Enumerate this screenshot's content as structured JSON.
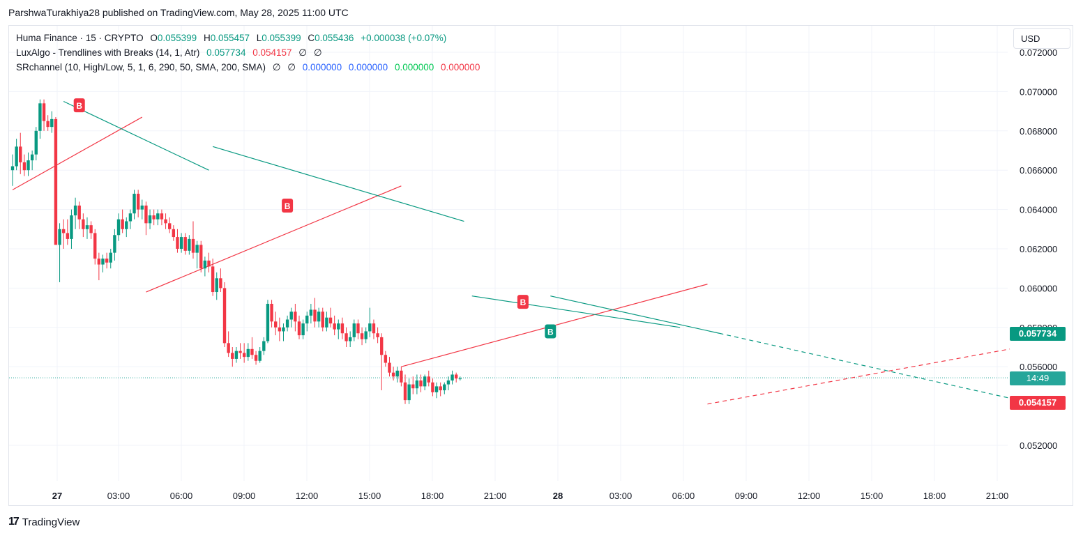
{
  "header": {
    "credit": "ParshwaTurakhiya28 published on TradingView.com, May 28, 2025 11:00 UTC"
  },
  "legend": {
    "symbol": "Huma Finance · 15 · CRYPTO",
    "o_label": "O",
    "o_value": "0.055399",
    "h_label": "H",
    "h_value": "0.055457",
    "l_label": "L",
    "l_value": "0.055399",
    "c_label": "C",
    "c_value": "0.055436",
    "change": "+0.000038 (+0.07%)",
    "ind1_name": "LuxAlgo - Trendlines with Breaks (14, 1, Atr)",
    "ind1_v1": "0.057734",
    "ind1_v2": "0.054157",
    "ind1_v3": "∅",
    "ind1_v4": "∅",
    "ind2_name": "SRchannel (10, High/Low, 5, 1, 6, 290, 50, SMA, 200, SMA)",
    "ind2_v1": "∅",
    "ind2_v2": "∅",
    "ind2_v3": "0.000000",
    "ind2_v4": "0.000000",
    "ind2_v5": "0.000000",
    "ind2_v6": "0.000000"
  },
  "currency_button": "USD",
  "price_tags": {
    "upper": "0.057734",
    "countdown": "14:49",
    "lower": "0.054157"
  },
  "footer": {
    "brand": "TradingView"
  },
  "colors": {
    "up": "#089981",
    "down": "#f23645",
    "grid": "#f0f3fa"
  },
  "chart_data": {
    "type": "candlestick",
    "title": "Huma Finance · 15 · CRYPTO",
    "y_ticks": [
      "0.072000",
      "0.070000",
      "0.068000",
      "0.066000",
      "0.064000",
      "0.062000",
      "0.060000",
      "0.058000",
      "0.056000",
      "0.052000"
    ],
    "ylim": [
      0.0502,
      0.0725
    ],
    "x_ticks": [
      "27",
      "03:00",
      "06:00",
      "09:00",
      "12:00",
      "15:00",
      "18:00",
      "21:00",
      "28",
      "03:00",
      "06:00",
      "09:00",
      "12:00",
      "15:00",
      "18:00",
      "21:00"
    ],
    "current_price": 0.055436,
    "series": [
      {
        "name": "ohlc",
        "points": [
          [
            0.066,
            0.0668,
            0.0652,
            0.0662
          ],
          [
            0.0662,
            0.0676,
            0.066,
            0.0672
          ],
          [
            0.0672,
            0.0679,
            0.0658,
            0.0664
          ],
          [
            0.0664,
            0.0668,
            0.0657,
            0.066
          ],
          [
            0.066,
            0.0669,
            0.0657,
            0.0665
          ],
          [
            0.0665,
            0.067,
            0.066,
            0.0668
          ],
          [
            0.0668,
            0.0682,
            0.0665,
            0.068
          ],
          [
            0.068,
            0.0696,
            0.0676,
            0.0694
          ],
          [
            0.0694,
            0.0696,
            0.068,
            0.0685
          ],
          [
            0.0685,
            0.0688,
            0.068,
            0.0682
          ],
          [
            0.0682,
            0.069,
            0.0679,
            0.0686
          ],
          [
            0.0686,
            0.0687,
            0.0628,
            0.0622
          ],
          [
            0.0622,
            0.0633,
            0.0603,
            0.063
          ],
          [
            0.063,
            0.0635,
            0.062,
            0.0628
          ],
          [
            0.0628,
            0.0635,
            0.0622,
            0.0625
          ],
          [
            0.0625,
            0.064,
            0.062,
            0.0637
          ],
          [
            0.0637,
            0.0646,
            0.063,
            0.0642
          ],
          [
            0.0642,
            0.0644,
            0.063,
            0.0635
          ],
          [
            0.0635,
            0.0638,
            0.0626,
            0.063
          ],
          [
            0.063,
            0.0636,
            0.0625,
            0.0632
          ],
          [
            0.0632,
            0.0634,
            0.0625,
            0.0628
          ],
          [
            0.0628,
            0.063,
            0.0612,
            0.0615
          ],
          [
            0.0615,
            0.0618,
            0.0604,
            0.0612
          ],
          [
            0.0612,
            0.0617,
            0.0608,
            0.0615
          ],
          [
            0.0615,
            0.0618,
            0.061,
            0.0613
          ],
          [
            0.0613,
            0.062,
            0.061,
            0.0618
          ],
          [
            0.0618,
            0.063,
            0.0614,
            0.0627
          ],
          [
            0.0627,
            0.0638,
            0.0624,
            0.0635
          ],
          [
            0.0635,
            0.064,
            0.0628,
            0.063
          ],
          [
            0.063,
            0.0636,
            0.0626,
            0.0634
          ],
          [
            0.0634,
            0.064,
            0.063,
            0.0638
          ],
          [
            0.0638,
            0.065,
            0.0635,
            0.0648
          ],
          [
            0.0648,
            0.065,
            0.0636,
            0.064
          ],
          [
            0.064,
            0.0645,
            0.0635,
            0.0642
          ],
          [
            0.0642,
            0.0644,
            0.0627,
            0.0633
          ],
          [
            0.0633,
            0.064,
            0.063,
            0.0637
          ],
          [
            0.0637,
            0.064,
            0.0632,
            0.0635
          ],
          [
            0.0635,
            0.064,
            0.0632,
            0.0638
          ],
          [
            0.0638,
            0.064,
            0.0632,
            0.0635
          ],
          [
            0.0635,
            0.0638,
            0.063,
            0.0633
          ],
          [
            0.0633,
            0.0636,
            0.0628,
            0.063
          ],
          [
            0.063,
            0.0632,
            0.0624,
            0.0626
          ],
          [
            0.0626,
            0.063,
            0.0618,
            0.062
          ],
          [
            0.062,
            0.0628,
            0.0618,
            0.0626
          ],
          [
            0.0626,
            0.0628,
            0.0617,
            0.0619
          ],
          [
            0.0619,
            0.0627,
            0.0617,
            0.0625
          ],
          [
            0.0625,
            0.0634,
            0.0615,
            0.0618
          ],
          [
            0.0618,
            0.0624,
            0.061,
            0.0622
          ],
          [
            0.0622,
            0.0624,
            0.0608,
            0.061
          ],
          [
            0.061,
            0.0616,
            0.0606,
            0.0614
          ],
          [
            0.0614,
            0.0618,
            0.0608,
            0.0611
          ],
          [
            0.0611,
            0.0615,
            0.0596,
            0.0598
          ],
          [
            0.0598,
            0.0608,
            0.0594,
            0.0605
          ],
          [
            0.0605,
            0.061,
            0.0598,
            0.06
          ],
          [
            0.06,
            0.0603,
            0.057,
            0.0572
          ],
          [
            0.0572,
            0.0578,
            0.0565,
            0.0567
          ],
          [
            0.0567,
            0.057,
            0.056,
            0.0564
          ],
          [
            0.0564,
            0.057,
            0.0562,
            0.0568
          ],
          [
            0.0568,
            0.0572,
            0.0564,
            0.0567
          ],
          [
            0.0567,
            0.0572,
            0.0562,
            0.0565
          ],
          [
            0.0565,
            0.0572,
            0.0563,
            0.0569
          ],
          [
            0.0569,
            0.0575,
            0.0564,
            0.0566
          ],
          [
            0.0566,
            0.0568,
            0.0561,
            0.0563
          ],
          [
            0.0563,
            0.057,
            0.0562,
            0.0568
          ],
          [
            0.0568,
            0.0575,
            0.0566,
            0.0573
          ],
          [
            0.0573,
            0.0594,
            0.0572,
            0.0592
          ],
          [
            0.0592,
            0.0594,
            0.058,
            0.0583
          ],
          [
            0.0583,
            0.0588,
            0.0576,
            0.058
          ],
          [
            0.058,
            0.0585,
            0.0573,
            0.0578
          ],
          [
            0.0578,
            0.0582,
            0.0573,
            0.058
          ],
          [
            0.058,
            0.0586,
            0.0578,
            0.0584
          ],
          [
            0.0584,
            0.059,
            0.058,
            0.0588
          ],
          [
            0.0588,
            0.0592,
            0.0578,
            0.0583
          ],
          [
            0.0583,
            0.0586,
            0.0574,
            0.0576
          ],
          [
            0.0576,
            0.0584,
            0.0574,
            0.0582
          ],
          [
            0.0582,
            0.0588,
            0.0578,
            0.0586
          ],
          [
            0.0586,
            0.0592,
            0.0582,
            0.0589
          ],
          [
            0.0589,
            0.0595,
            0.058,
            0.0583
          ],
          [
            0.0583,
            0.059,
            0.058,
            0.0588
          ],
          [
            0.0588,
            0.059,
            0.0578,
            0.058
          ],
          [
            0.058,
            0.0588,
            0.0578,
            0.0585
          ],
          [
            0.0585,
            0.059,
            0.058,
            0.0582
          ],
          [
            0.0582,
            0.0586,
            0.0576,
            0.0579
          ],
          [
            0.0579,
            0.0584,
            0.0574,
            0.0582
          ],
          [
            0.0582,
            0.0585,
            0.0574,
            0.0577
          ],
          [
            0.0577,
            0.058,
            0.057,
            0.0573
          ],
          [
            0.0573,
            0.0578,
            0.057,
            0.0575
          ],
          [
            0.0575,
            0.0584,
            0.0573,
            0.0582
          ],
          [
            0.0582,
            0.0584,
            0.0574,
            0.0577
          ],
          [
            0.0577,
            0.058,
            0.0571,
            0.0574
          ],
          [
            0.0574,
            0.058,
            0.0572,
            0.0578
          ],
          [
            0.0578,
            0.059,
            0.0575,
            0.0582
          ],
          [
            0.0582,
            0.0584,
            0.0574,
            0.0577
          ],
          [
            0.0577,
            0.058,
            0.0572,
            0.0575
          ],
          [
            0.0575,
            0.0577,
            0.0548,
            0.0566
          ],
          [
            0.0566,
            0.0568,
            0.056,
            0.0562
          ],
          [
            0.0562,
            0.0565,
            0.0555,
            0.0557
          ],
          [
            0.0557,
            0.056,
            0.0553,
            0.0555
          ],
          [
            0.0555,
            0.056,
            0.0552,
            0.0558
          ],
          [
            0.0558,
            0.056,
            0.055,
            0.0552
          ],
          [
            0.0552,
            0.0556,
            0.0541,
            0.0543
          ],
          [
            0.0543,
            0.0554,
            0.0541,
            0.0551
          ],
          [
            0.0551,
            0.0555,
            0.0546,
            0.0549
          ],
          [
            0.0549,
            0.0556,
            0.0546,
            0.0553
          ],
          [
            0.0553,
            0.0556,
            0.0547,
            0.055
          ],
          [
            0.055,
            0.0556,
            0.0548,
            0.0555
          ],
          [
            0.0555,
            0.0558,
            0.055,
            0.0552
          ],
          [
            0.0552,
            0.0554,
            0.0545,
            0.0547
          ],
          [
            0.0547,
            0.0552,
            0.0544,
            0.055
          ],
          [
            0.055,
            0.0552,
            0.0545,
            0.0548
          ],
          [
            0.0548,
            0.0552,
            0.0546,
            0.0551
          ],
          [
            0.0551,
            0.0555,
            0.0548,
            0.0553
          ],
          [
            0.0553,
            0.0558,
            0.0551,
            0.0556
          ],
          [
            0.0556,
            0.0557,
            0.0552,
            0.0554
          ],
          [
            0.0554,
            0.0555,
            0.0553,
            0.0554
          ]
        ]
      }
    ]
  }
}
